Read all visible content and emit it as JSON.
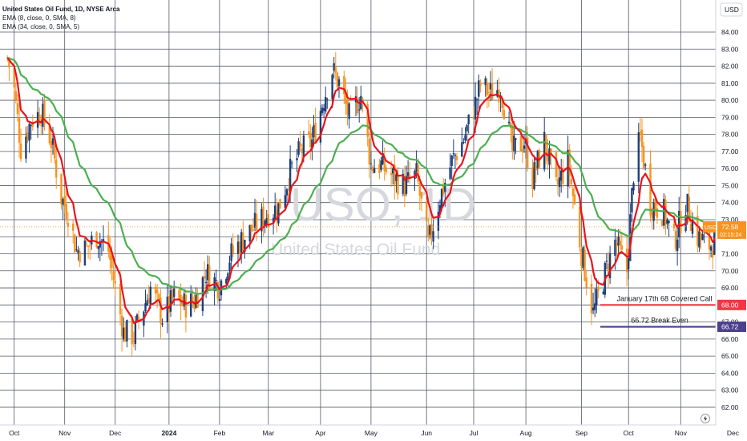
{
  "header": {
    "title": "United States Oil Fund, 1D, NYSE Arca",
    "indicators": [
      "EMA (8, close, 0, SMA, 8)",
      "EMA (34, close, 0, SMA, 5)"
    ]
  },
  "currency_label": "USD",
  "watermark": {
    "symbol": "USO, 1D",
    "name": "United States Oil Fund"
  },
  "colors": {
    "up": "#1e3f7a",
    "down": "#f7931e",
    "ema_fast": "#e8141c",
    "ema_slow": "#4caf50",
    "call_line": "#f23645",
    "breakeven_line": "#4c3f8f",
    "grid": "#545a66",
    "last_price_tag": "#f7931e"
  },
  "chart_data": {
    "type": "candlestick",
    "title": "United States Oil Fund, 1D, NYSE Arca",
    "ylim": [
      62,
      84.5
    ],
    "y_ticks": [
      "84.00",
      "83.00",
      "82.00",
      "81.00",
      "80.00",
      "79.00",
      "78.00",
      "77.00",
      "76.00",
      "75.00",
      "74.00",
      "73.00",
      "72.00",
      "71.00",
      "70.00",
      "69.00",
      "68.00",
      "67.00",
      "66.00",
      "65.00",
      "64.00",
      "63.00",
      "62.00"
    ],
    "x_ticks": [
      "Oct",
      "Nov",
      "Dec",
      "2024",
      "Feb",
      "Mar",
      "Apr",
      "May",
      "Jun",
      "Jul",
      "Aug",
      "Sep",
      "Oct",
      "Nov",
      "Dec"
    ],
    "grid": true,
    "ohlc_anchors": [
      [
        "2023-09-28",
        82.5
      ],
      [
        "2023-10-02",
        80.6
      ],
      [
        "2023-10-06",
        77.2
      ],
      [
        "2023-10-12",
        78.8
      ],
      [
        "2023-10-18",
        79.3
      ],
      [
        "2023-10-24",
        77.6
      ],
      [
        "2023-10-30",
        74.3
      ],
      [
        "2023-11-03",
        73.4
      ],
      [
        "2023-11-08",
        71.2
      ],
      [
        "2023-11-14",
        71.3
      ],
      [
        "2023-11-20",
        72.1
      ],
      [
        "2023-11-27",
        71.2
      ],
      [
        "2023-12-01",
        69.0
      ],
      [
        "2023-12-06",
        66.4
      ],
      [
        "2023-12-12",
        66.2
      ],
      [
        "2023-12-18",
        67.9
      ],
      [
        "2023-12-22",
        69.0
      ],
      [
        "2023-12-29",
        67.3
      ],
      [
        "2024-01-05",
        68.4
      ],
      [
        "2024-01-11",
        68.0
      ],
      [
        "2024-01-17",
        68.2
      ],
      [
        "2024-01-24",
        69.9
      ],
      [
        "2024-02-01",
        69.1
      ],
      [
        "2024-02-07",
        70.8
      ],
      [
        "2024-02-14",
        71.8
      ],
      [
        "2024-02-22",
        72.6
      ],
      [
        "2024-03-01",
        73.4
      ],
      [
        "2024-03-07",
        73.7
      ],
      [
        "2024-03-14",
        75.8
      ],
      [
        "2024-03-20",
        77.0
      ],
      [
        "2024-03-27",
        77.6
      ],
      [
        "2024-04-02",
        79.8
      ],
      [
        "2024-04-08",
        81.8
      ],
      [
        "2024-04-12",
        81.0
      ],
      [
        "2024-04-18",
        79.0
      ],
      [
        "2024-04-25",
        80.3
      ],
      [
        "2024-05-01",
        76.2
      ],
      [
        "2024-05-07",
        76.2
      ],
      [
        "2024-05-14",
        75.5
      ],
      [
        "2024-05-21",
        75.0
      ],
      [
        "2024-05-28",
        75.6
      ],
      [
        "2024-06-04",
        71.5
      ],
      [
        "2024-06-11",
        74.3
      ],
      [
        "2024-06-18",
        76.4
      ],
      [
        "2024-06-25",
        77.7
      ],
      [
        "2024-07-02",
        79.8
      ],
      [
        "2024-07-05",
        80.9
      ],
      [
        "2024-07-11",
        80.4
      ],
      [
        "2024-07-17",
        80.8
      ],
      [
        "2024-07-24",
        77.0
      ],
      [
        "2024-07-31",
        77.6
      ],
      [
        "2024-08-05",
        75.4
      ],
      [
        "2024-08-12",
        77.6
      ],
      [
        "2024-08-19",
        74.8
      ],
      [
        "2024-08-26",
        76.4
      ],
      [
        "2024-09-03",
        71.1
      ],
      [
        "2024-09-10",
        67.5
      ],
      [
        "2024-09-16",
        69.5
      ],
      [
        "2024-09-23",
        71.7
      ],
      [
        "2024-09-30",
        70.0
      ],
      [
        "2024-10-04",
        75.8
      ],
      [
        "2024-10-08",
        77.8
      ],
      [
        "2024-10-14",
        74.0
      ],
      [
        "2024-10-22",
        73.4
      ],
      [
        "2024-10-28",
        71.7
      ],
      [
        "2024-11-04",
        74.0
      ],
      [
        "2024-11-11",
        72.0
      ],
      [
        "2024-11-18",
        71.5
      ],
      [
        "2024-11-25",
        71.9
      ],
      [
        "2024-12-02",
        72.7
      ],
      [
        "2024-12-05",
        72.6
      ]
    ],
    "last_price": {
      "label": "USO",
      "value": "72.58",
      "countdown": "02:15:24"
    },
    "levels": [
      {
        "label": "January 17th 68 Covered Call",
        "value": 68.0,
        "value_label": "68.00"
      },
      {
        "label": "66.72 Break Even",
        "value": 66.72,
        "value_label": "66.72"
      }
    ]
  }
}
